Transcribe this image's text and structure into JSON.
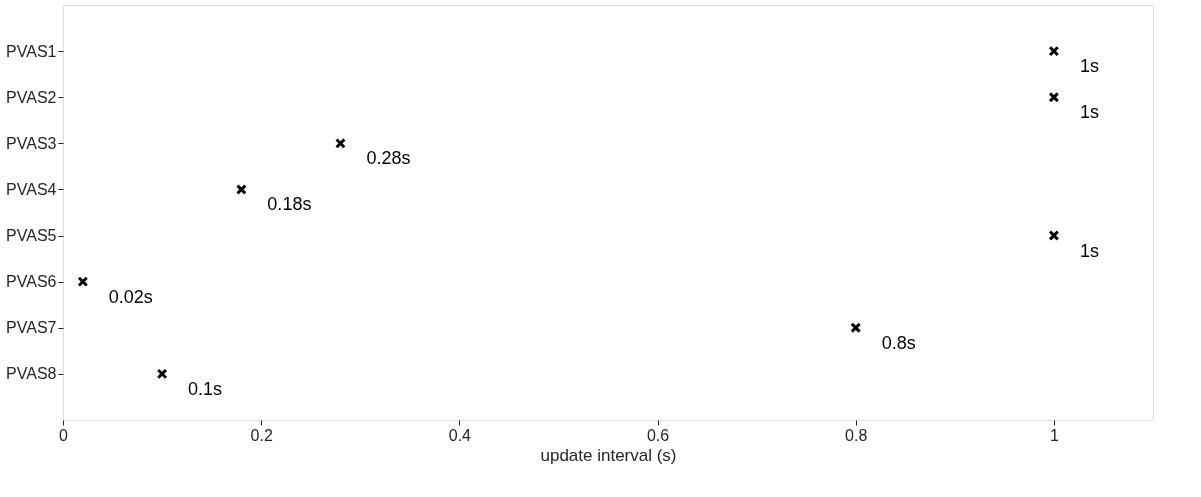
{
  "chart_data": {
    "type": "scatter",
    "orientation": "horizontal",
    "xlabel": "update interval (s)",
    "categories": [
      "PVAS1",
      "PVAS2",
      "PVAS3",
      "PVAS4",
      "PVAS5",
      "PVAS6",
      "PVAS7",
      "PVAS8"
    ],
    "values": [
      1,
      1,
      0.28,
      0.18,
      1,
      0.02,
      0.8,
      0.1
    ],
    "value_labels": [
      "1s",
      "1s",
      "0.28s",
      "0.18s",
      "1s",
      "0.02s",
      "0.8s",
      "0.1s"
    ],
    "color": "#000000",
    "marker": "cross",
    "grid": false,
    "xlim": [
      0,
      1.1
    ],
    "xticks": [
      0,
      0.2,
      0.4,
      0.6,
      0.8,
      1
    ]
  }
}
